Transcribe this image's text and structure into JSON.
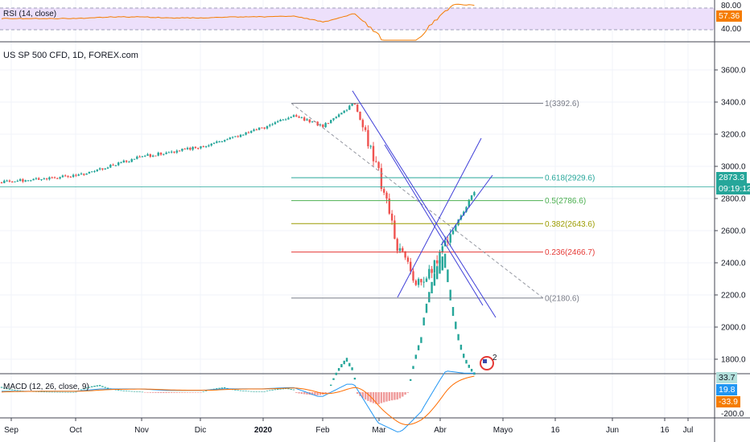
{
  "symbol_title": "US SP 500 CFD, 1D, FOREX.com",
  "rsi": {
    "label": "RSI (14, close)",
    "ticks": [
      "80.00",
      "40.00"
    ],
    "value": "57.36",
    "value_color": "#f57c00",
    "line_color": "#f57c00",
    "band_color": "#ede0fb"
  },
  "macd": {
    "label": "MACD (12, 26, close, 9)",
    "ticks": [
      "-200.0"
    ],
    "values": [
      {
        "text": "33.7",
        "color": "#b2dfdb"
      },
      {
        "text": "19.8",
        "color": "#2196f3"
      },
      {
        "text": "-33.9",
        "color": "#f57c00"
      }
    ]
  },
  "price_axis": {
    "ticks": [
      "3600.0",
      "3400.0",
      "3200.0",
      "3000.0",
      "2800.0",
      "2600.0",
      "2400.0",
      "2200.0",
      "2000.0",
      "1800.0"
    ],
    "last_price": "2873.3",
    "countdown": "09:19:12",
    "accent": "#26a69a"
  },
  "time_axis": [
    "Sep",
    "Oct",
    "Nov",
    "Dic",
    "2020",
    "Feb",
    "Mar",
    "Abr",
    "Mayo",
    "16",
    "Jun",
    "16",
    "Jul"
  ],
  "fib": [
    {
      "label": "1(3392.6)",
      "price": 3392.6,
      "color": "#787b86"
    },
    {
      "label": "0.618(2929.6)",
      "price": 2929.6,
      "color": "#26a69a"
    },
    {
      "label": "0.5(2786.6)",
      "price": 2786.6,
      "color": "#4caf50"
    },
    {
      "label": "0.382(2643.6)",
      "price": 2643.6,
      "color": "#9c9c00"
    },
    {
      "label": "0.236(2466.7)",
      "price": 2466.7,
      "color": "#e53935"
    },
    {
      "label": "0(2180.6)",
      "price": 2180.6,
      "color": "#787b86"
    }
  ],
  "chart_data": {
    "type": "candlestick",
    "price_path": [
      [
        "Sep",
        2900
      ],
      [
        "Oct",
        2940
      ],
      [
        "Nov",
        3060
      ],
      [
        "Dic",
        3120
      ],
      [
        "2020",
        3240
      ],
      [
        "Ene 15",
        3320
      ],
      [
        "Feb",
        3250
      ],
      [
        "Feb 19",
        3393
      ],
      [
        "Mar",
        2950
      ],
      [
        "Mar 12",
        2480
      ],
      [
        "Mar 23",
        2237
      ],
      [
        "Abr",
        2470
      ],
      [
        "Abr 14",
        2846
      ]
    ],
    "up_color": "#26a69a",
    "down_color": "#ef5350"
  },
  "events": {
    "flag_count": "2"
  }
}
